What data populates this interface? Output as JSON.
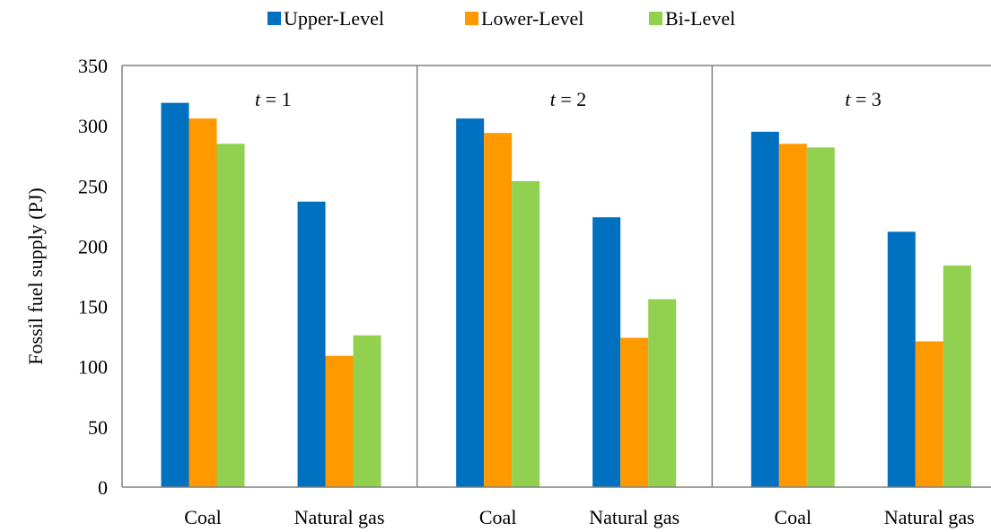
{
  "chart_data": {
    "type": "bar",
    "ylabel": "Fossil fuel supply (PJ)",
    "ylim": [
      0,
      350
    ],
    "yticks": [
      0,
      50,
      100,
      150,
      200,
      250,
      300,
      350
    ],
    "grid": false,
    "legend_position": "top-center",
    "categories": [
      "Coal",
      "Natural gas"
    ],
    "series": [
      {
        "name": "Upper-Level",
        "color": "#0070C0"
      },
      {
        "name": "Lower-Level",
        "color": "#FF9900"
      },
      {
        "name": "Bi-Level",
        "color": "#92D050"
      }
    ],
    "panels": [
      {
        "t_label": "t",
        "t_value": "= 1",
        "values": {
          "Upper-Level": [
            319,
            237
          ],
          "Lower-Level": [
            306,
            109
          ],
          "Bi-Level": [
            285,
            126
          ]
        }
      },
      {
        "t_label": "t",
        "t_value": "= 2",
        "values": {
          "Upper-Level": [
            306,
            224
          ],
          "Lower-Level": [
            294,
            124
          ],
          "Bi-Level": [
            254,
            156
          ]
        }
      },
      {
        "t_label": "t",
        "t_value": "= 3",
        "values": {
          "Upper-Level": [
            295,
            212
          ],
          "Lower-Level": [
            285,
            121
          ],
          "Bi-Level": [
            282,
            184
          ]
        }
      }
    ]
  }
}
